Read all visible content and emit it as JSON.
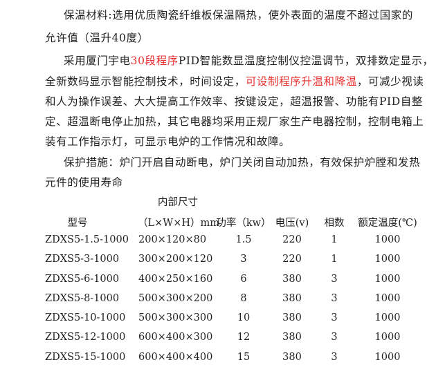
{
  "paragraphs": {
    "insulation": {
      "line1": "保温材料:选用优质陶瓷纤维板保温隔热，使外表面的温度不超过国家的",
      "line2": "允许值（温升40度）"
    },
    "control": {
      "l1_a": "采用厦门宇电",
      "l1_red": "30段程序",
      "l1_b": "PID智能数显温度控制仪控温调节，双排数定显示，",
      "l2_a": "全新数码显示智能控制技术，时间设定，",
      "l2_red": "可设制程序升温和降温",
      "l2_b": "，可减少视读",
      "l3": "和人为操作误差、大大提高工作效率、按键设定，超温报警、功能有PID自整",
      "l4": "定、超温断电停止加热，其它电器均采用正规厂家生产电器控制，控制电箱上",
      "l5": "装有工作指示灯，可显示电炉的工作情况和故障。"
    },
    "protection": {
      "line1": "保护措施：炉门开启自动断电，炉门关闭自动加热，有效保护炉膛和发热",
      "line2": "元件的使用寿命"
    }
  },
  "highlight_color": "#e8312f",
  "table": {
    "header_top": "内部尺寸",
    "headers": [
      "型号",
      "（L×W×H）mm",
      "功率（kw）",
      "电压(v)",
      "相数",
      "额定温度(℃)"
    ],
    "rows": [
      [
        "ZDXS5-1.5-1000",
        "200×120×80",
        "1.5",
        "220",
        "1",
        "1000"
      ],
      [
        "ZDXS5-3-1000",
        "300×200×120",
        "3",
        "220",
        "1",
        "1000"
      ],
      [
        "ZDXS5-6-1000",
        "400×250×160",
        "6",
        "380",
        "3",
        "1000"
      ],
      [
        "ZDXS5-8-1000",
        "500×300×200",
        "8",
        "380",
        "3",
        "1000"
      ],
      [
        "ZDXS5-10-1000",
        "500×300×300",
        "10",
        "380",
        "3",
        "1000"
      ],
      [
        "ZDXS5-12-1000",
        "600×400×300",
        "12",
        "380",
        "3",
        "1000"
      ],
      [
        "ZDXS5-15-1000",
        "600×400×400",
        "15",
        "380",
        "3",
        "1000"
      ]
    ]
  }
}
